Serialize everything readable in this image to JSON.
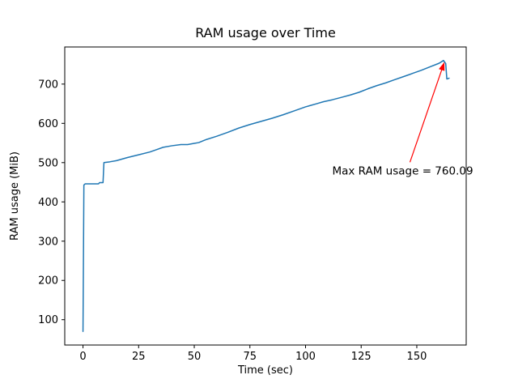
{
  "chart_data": {
    "type": "line",
    "title": "RAM usage over Time",
    "xlabel": "Time (sec)",
    "ylabel": "RAM usage (MiB)",
    "line_color": "#1f77b4",
    "axis_color": "#000000",
    "grid": false,
    "xlim": [
      -8.2,
      172.2
    ],
    "ylim": [
      35.5,
      794.5
    ],
    "x_ticks": [
      0,
      25,
      50,
      75,
      100,
      125,
      150
    ],
    "y_ticks": [
      100,
      200,
      300,
      400,
      500,
      600,
      700
    ],
    "x": [
      0,
      0.4,
      1,
      7,
      7.4,
      9,
      9.4,
      12,
      15,
      20,
      25,
      30,
      33,
      36,
      40,
      44,
      47,
      50,
      52,
      55,
      60,
      65,
      70,
      75,
      80,
      85,
      90,
      95,
      100,
      105,
      108,
      112,
      116,
      120,
      124,
      128,
      132,
      136,
      140,
      144,
      148,
      152,
      156,
      160,
      162,
      163,
      163.5,
      164.5
    ],
    "y": [
      70,
      443,
      446,
      446,
      449,
      449,
      500,
      502,
      505,
      513,
      520,
      527,
      533,
      539,
      543,
      546,
      546,
      549,
      551,
      558,
      567,
      577,
      588,
      597,
      605,
      613,
      622,
      632,
      642,
      650,
      655,
      660,
      666,
      672,
      679,
      688,
      696,
      703,
      711,
      719,
      727,
      735,
      744,
      753,
      760.09,
      752,
      713,
      715
    ],
    "max_value": 760.09,
    "annotation": {
      "text": "Max RAM usage = 760.09",
      "color": "#ff0000",
      "xy": [
        162.4,
        756
      ],
      "xytext": [
        112,
        470
      ]
    }
  }
}
